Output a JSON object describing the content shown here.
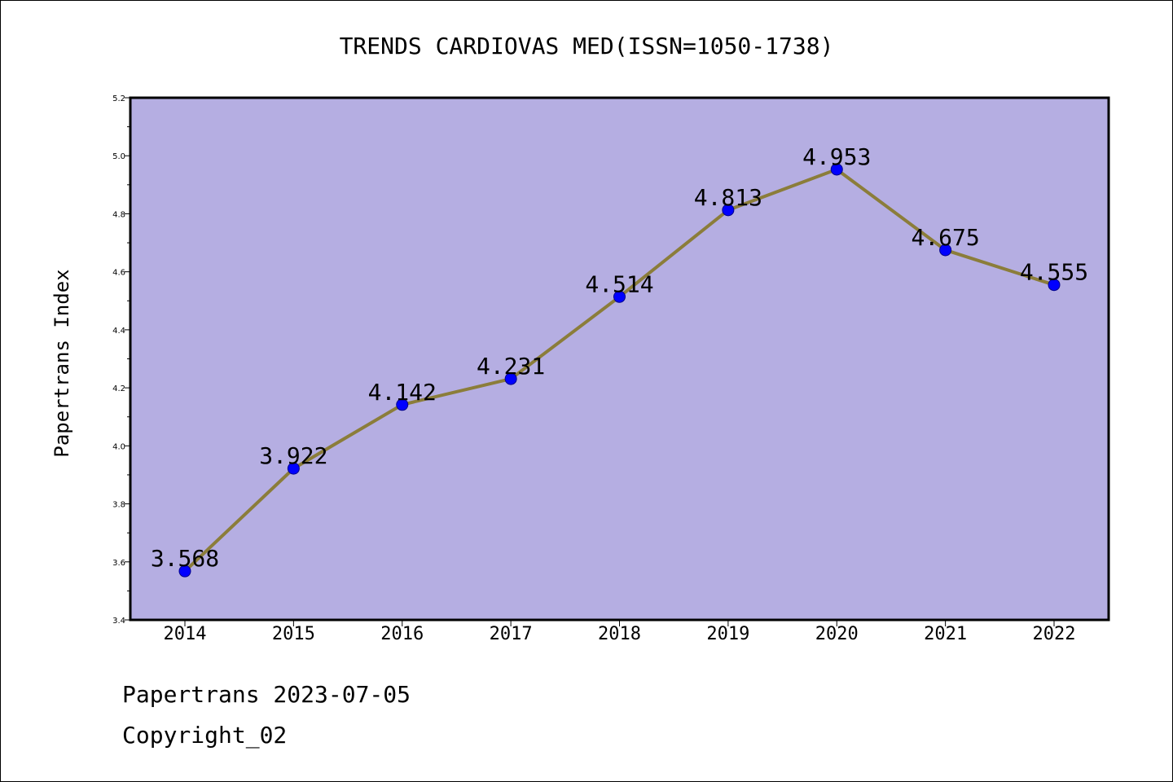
{
  "chart_data": {
    "type": "line",
    "title": "TRENDS CARDIOVAS MED(ISSN=1050-1738)",
    "xlabel": "",
    "ylabel": "Papertrans Index",
    "categories": [
      "2014",
      "2015",
      "2016",
      "2017",
      "2018",
      "2019",
      "2020",
      "2021",
      "2022"
    ],
    "series": [
      {
        "values": [
          3.568,
          3.922,
          4.142,
          4.231,
          4.514,
          4.813,
          4.953,
          4.675,
          4.555
        ],
        "data_labels": [
          "3.568",
          "3.922",
          "4.142",
          "4.231",
          "4.514",
          "4.813",
          "4.953",
          "4.675",
          "4.555"
        ]
      }
    ],
    "ylim": [
      3.4,
      5.2
    ],
    "yticks": [
      "3.4",
      "3.6",
      "3.8",
      "4.0",
      "4.2",
      "4.4",
      "4.6",
      "4.8",
      "5.0",
      "5.2"
    ],
    "grid": false,
    "colors": {
      "plot_background": "#b5aee2",
      "line": "#8b7d3a",
      "marker_fill": "#0000ff",
      "marker_edge": "#00008b"
    }
  },
  "footer": {
    "line1": "Papertrans 2023-07-05",
    "line2": "Copyright_02"
  }
}
